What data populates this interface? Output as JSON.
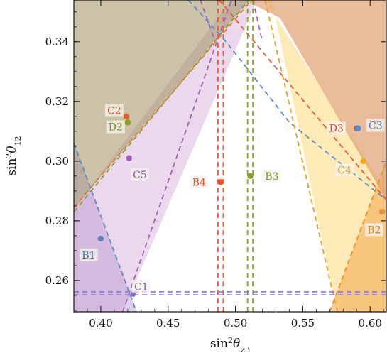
{
  "chart_data": {
    "type": "scatter",
    "xlabel": {
      "base": "sin",
      "sup": "2",
      "theta": "θ",
      "sub": "23"
    },
    "ylabel": {
      "base": "sin",
      "sup": "2",
      "theta": "θ",
      "sub": "12"
    },
    "xlim": [
      0.38,
      0.612
    ],
    "ylim": [
      0.2495,
      0.354
    ],
    "xticks": [
      0.4,
      0.45,
      0.5,
      0.55,
      0.6
    ],
    "xtick_labels": [
      "0.40",
      "0.45",
      "0.50",
      "0.55",
      "0.60"
    ],
    "yticks": [
      0.26,
      0.28,
      0.3,
      0.32,
      0.34
    ],
    "ytick_labels": [
      "0.26",
      "0.28",
      "0.30",
      "0.32",
      "0.34"
    ],
    "regions": [
      {
        "key": "purple-left",
        "color": "#9070c0",
        "opacity": 0.32,
        "polygon": [
          [
            0.38,
            0.306
          ],
          [
            0.4265,
            0.2495
          ],
          [
            0.38,
            0.2495
          ]
        ]
      },
      {
        "key": "violet-band",
        "color": "#c890c8",
        "opacity": 0.35,
        "polygon": [
          [
            0.38,
            0.284
          ],
          [
            0.497,
            0.354
          ],
          [
            0.516,
            0.354
          ],
          [
            0.4163,
            0.2495
          ],
          [
            0.38,
            0.2495
          ]
        ]
      },
      {
        "key": "olive-left",
        "color": "#a09060",
        "opacity": 0.55,
        "polygon": [
          [
            0.38,
            0.354
          ],
          [
            0.493,
            0.354
          ],
          [
            0.51,
            0.354
          ],
          [
            0.38,
            0.284
          ]
        ]
      },
      {
        "key": "yellow-right",
        "color": "#fcd060",
        "opacity": 0.45,
        "polygon": [
          [
            0.522,
            0.354
          ],
          [
            0.527,
            0.354
          ],
          [
            0.5756,
            0.2495
          ],
          [
            0.612,
            0.2495
          ],
          [
            0.612,
            0.29
          ]
        ]
      },
      {
        "key": "orange-right",
        "color": "#f0a040",
        "opacity": 0.5,
        "polygon": [
          [
            0.612,
            0.2495
          ],
          [
            0.612,
            0.3
          ],
          [
            0.57,
            0.2495
          ]
        ]
      },
      {
        "key": "orange-top-right",
        "color": "#e0a070",
        "opacity": 0.7,
        "polygon": [
          [
            0.513,
            0.354
          ],
          [
            0.612,
            0.354
          ],
          [
            0.612,
            0.287
          ],
          [
            0.533,
            0.348
          ],
          [
            0.507,
            0.354
          ]
        ]
      }
    ],
    "dashed_lines": [
      {
        "color": "#5a8ac8",
        "pts": [
          [
            0.38,
            0.306
          ],
          [
            0.4265,
            0.2495
          ]
        ]
      },
      {
        "color": "#5a8ac8",
        "pts": [
          [
            0.465,
            0.354
          ],
          [
            0.493,
            0.34
          ],
          [
            0.507,
            0.332
          ],
          [
            0.54,
            0.313
          ],
          [
            0.612,
            0.287
          ]
        ]
      },
      {
        "color": "#a060b8",
        "pts": [
          [
            0.4163,
            0.2495
          ],
          [
            0.497,
            0.354
          ]
        ]
      },
      {
        "color": "#a060b8",
        "pts": [
          [
            0.474,
            0.354
          ],
          [
            0.485,
            0.34
          ]
        ]
      },
      {
        "color": "#a060b8",
        "pts": [
          [
            0.513,
            0.354
          ],
          [
            0.52,
            0.34
          ]
        ]
      },
      {
        "color": "#88a030",
        "pts": [
          [
            0.38,
            0.283
          ],
          [
            0.51,
            0.354
          ]
        ]
      },
      {
        "color": "#e08030",
        "pts": [
          [
            0.38,
            0.2845
          ],
          [
            0.512,
            0.354
          ]
        ]
      },
      {
        "color": "#e85a40",
        "pts": [
          [
            0.488,
            0.354
          ],
          [
            0.612,
            0.287
          ]
        ]
      },
      {
        "color": "#e8a020",
        "pts": [
          [
            0.522,
            0.354
          ],
          [
            0.5756,
            0.2495
          ]
        ]
      },
      {
        "color": "#e89030",
        "pts": [
          [
            0.57,
            0.2495
          ],
          [
            0.612,
            0.3
          ]
        ]
      },
      {
        "color": "#e85a40",
        "pts": [
          [
            0.487,
            0.354
          ],
          [
            0.487,
            0.2495
          ]
        ]
      },
      {
        "color": "#e85a40",
        "pts": [
          [
            0.491,
            0.354
          ],
          [
            0.491,
            0.2495
          ]
        ]
      },
      {
        "color": "#88a030",
        "pts": [
          [
            0.509,
            0.354
          ],
          [
            0.509,
            0.2495
          ]
        ]
      },
      {
        "color": "#88a030",
        "pts": [
          [
            0.513,
            0.354
          ],
          [
            0.513,
            0.2495
          ]
        ]
      },
      {
        "color": "#9080c8",
        "pts": [
          [
            0.38,
            0.2552
          ],
          [
            0.612,
            0.2552
          ]
        ]
      },
      {
        "color": "#9080c8",
        "pts": [
          [
            0.38,
            0.2562
          ],
          [
            0.612,
            0.2562
          ]
        ]
      }
    ],
    "points": [
      {
        "name": "B1",
        "x": 0.4,
        "y": 0.274,
        "color": "#5a7fb8",
        "label": "B1",
        "lx": 0.391,
        "ly": 0.2685,
        "label_color": "#3a6aa0"
      },
      {
        "name": "C1",
        "x": 0.424,
        "y": 0.2555,
        "color": "#9070c0",
        "label": "C1",
        "lx": 0.43,
        "ly": 0.258,
        "label_color": "#8060b8"
      },
      {
        "name": "C5",
        "x": 0.421,
        "y": 0.301,
        "color": "#a060b8",
        "label": "C5",
        "lx": 0.429,
        "ly": 0.2955,
        "label_color": "#9050b0"
      },
      {
        "name": "C2",
        "x": 0.419,
        "y": 0.315,
        "color": "#e06030",
        "label": "C2",
        "lx": 0.41,
        "ly": 0.317,
        "label_color": "#d05020"
      },
      {
        "name": "D2",
        "x": 0.42,
        "y": 0.313,
        "color": "#88a020",
        "label": "D2",
        "lx": 0.411,
        "ly": 0.3115,
        "label_color": "#789020"
      },
      {
        "name": "B4",
        "x": 0.489,
        "y": 0.293,
        "color": "#e85a30",
        "label": "B4",
        "lx": 0.473,
        "ly": 0.293,
        "label_color": "#e05028"
      },
      {
        "name": "B3",
        "x": 0.511,
        "y": 0.295,
        "color": "#88a030",
        "label": "B3",
        "lx": 0.527,
        "ly": 0.295,
        "label_color": "#789020"
      },
      {
        "name": "D3",
        "x": 0.59,
        "y": 0.311,
        "color": "#e05040",
        "label": "D3",
        "lx": 0.575,
        "ly": 0.311,
        "label_color": "#d84030"
      },
      {
        "name": "C3",
        "x": 0.591,
        "y": 0.311,
        "color": "#5a8ac8",
        "label": "C3",
        "lx": 0.604,
        "ly": 0.312,
        "label_color": "#4a7ab0"
      },
      {
        "name": "C4",
        "x": 0.595,
        "y": 0.3,
        "color": "#f0a820",
        "label": "C4",
        "lx": 0.581,
        "ly": 0.297,
        "label_color": "#e09810"
      },
      {
        "name": "B2",
        "x": 0.609,
        "y": 0.283,
        "color": "#e09030",
        "label": "B2",
        "lx": 0.603,
        "ly": 0.277,
        "label_color": "#d08020"
      }
    ]
  }
}
